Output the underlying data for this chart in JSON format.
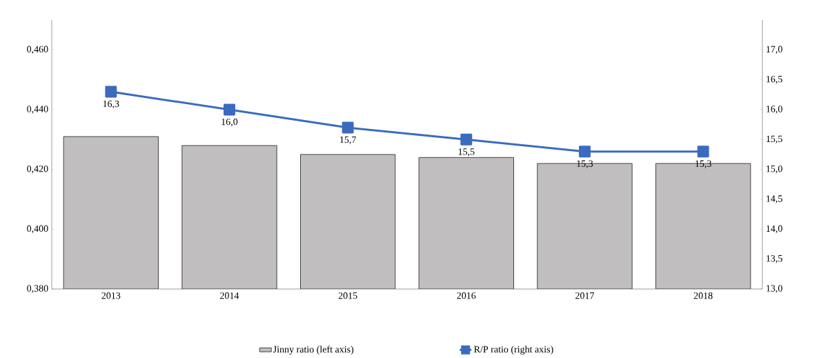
{
  "chart_data": {
    "type": "bar",
    "categories": [
      "2013",
      "2014",
      "2015",
      "2016",
      "2017",
      "2018"
    ],
    "series": [
      {
        "name": "Jinny ratio (left axis)",
        "color": "#c0bebf",
        "values": [
          0.431,
          0.428,
          0.425,
          0.424,
          0.422,
          0.422
        ]
      },
      {
        "name": "R/P ratio (right axis)",
        "type": "line",
        "axis": "y2",
        "color": "#3a6bbf",
        "marker": "square",
        "line_style": "solid",
        "values": [
          16.3,
          16.0,
          15.7,
          15.5,
          15.3,
          15.3
        ],
        "value_labels": [
          "16,3",
          "16,0",
          "15,7",
          "15,5",
          "15,3",
          "15,3"
        ]
      }
    ],
    "ylim": [
      0.38,
      0.47
    ],
    "yticks": [
      {
        "value": 0.38,
        "label": "0,380"
      },
      {
        "value": 0.4,
        "label": "0,400"
      },
      {
        "value": 0.42,
        "label": "0,420"
      },
      {
        "value": 0.44,
        "label": "0,440"
      },
      {
        "value": 0.46,
        "label": "0,460"
      }
    ],
    "y2lim": [
      13.0,
      17.5
    ],
    "y2ticks": [
      {
        "value": 13.0,
        "label": "13,0"
      },
      {
        "value": 13.5,
        "label": "13,5"
      },
      {
        "value": 14.0,
        "label": "14,0"
      },
      {
        "value": 14.5,
        "label": "14,5"
      },
      {
        "value": 15.0,
        "label": "15,0"
      },
      {
        "value": 15.5,
        "label": "15,5"
      },
      {
        "value": 16.0,
        "label": "16,0"
      },
      {
        "value": 16.5,
        "label": "16,5"
      },
      {
        "value": 17.0,
        "label": "17,0"
      }
    ],
    "grid": false,
    "legend": "bottom"
  }
}
